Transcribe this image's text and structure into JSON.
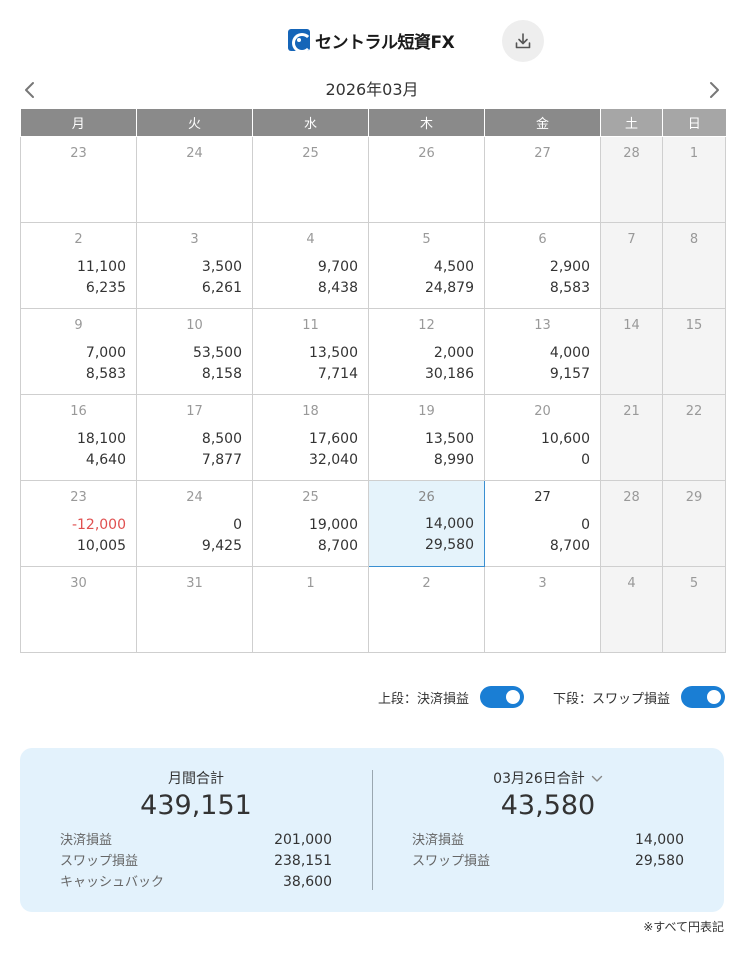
{
  "header": {
    "logo_text": "セントラル短資FX",
    "download_icon": "download-icon"
  },
  "calendar": {
    "month_title": "2026年03月",
    "weekdays": [
      "月",
      "火",
      "水",
      "木",
      "金",
      "土",
      "日"
    ],
    "weeks": [
      [
        {
          "day": "23",
          "pl": "",
          "swap": ""
        },
        {
          "day": "24",
          "pl": "",
          "swap": ""
        },
        {
          "day": "25",
          "pl": "",
          "swap": ""
        },
        {
          "day": "26",
          "pl": "",
          "swap": ""
        },
        {
          "day": "27",
          "pl": "",
          "swap": ""
        },
        {
          "day": "28",
          "pl": "",
          "swap": ""
        },
        {
          "day": "1",
          "pl": "",
          "swap": ""
        }
      ],
      [
        {
          "day": "2",
          "pl": "11,100",
          "swap": "6,235"
        },
        {
          "day": "3",
          "pl": "3,500",
          "swap": "6,261"
        },
        {
          "day": "4",
          "pl": "9,700",
          "swap": "8,438"
        },
        {
          "day": "5",
          "pl": "4,500",
          "swap": "24,879"
        },
        {
          "day": "6",
          "pl": "2,900",
          "swap": "8,583"
        },
        {
          "day": "7",
          "pl": "",
          "swap": ""
        },
        {
          "day": "8",
          "pl": "",
          "swap": ""
        }
      ],
      [
        {
          "day": "9",
          "pl": "7,000",
          "swap": "8,583"
        },
        {
          "day": "10",
          "pl": "53,500",
          "swap": "8,158"
        },
        {
          "day": "11",
          "pl": "13,500",
          "swap": "7,714"
        },
        {
          "day": "12",
          "pl": "2,000",
          "swap": "30,186"
        },
        {
          "day": "13",
          "pl": "4,000",
          "swap": "9,157"
        },
        {
          "day": "14",
          "pl": "",
          "swap": ""
        },
        {
          "day": "15",
          "pl": "",
          "swap": ""
        }
      ],
      [
        {
          "day": "16",
          "pl": "18,100",
          "swap": "4,640"
        },
        {
          "day": "17",
          "pl": "8,500",
          "swap": "7,877"
        },
        {
          "day": "18",
          "pl": "17,600",
          "swap": "32,040"
        },
        {
          "day": "19",
          "pl": "13,500",
          "swap": "8,990"
        },
        {
          "day": "20",
          "pl": "10,600",
          "swap": "0"
        },
        {
          "day": "21",
          "pl": "",
          "swap": ""
        },
        {
          "day": "22",
          "pl": "",
          "swap": ""
        }
      ],
      [
        {
          "day": "23",
          "pl": "-12,000",
          "swap": "10,005",
          "negative": true
        },
        {
          "day": "24",
          "pl": "0",
          "swap": "9,425"
        },
        {
          "day": "25",
          "pl": "19,000",
          "swap": "8,700"
        },
        {
          "day": "26",
          "pl": "14,000",
          "swap": "29,580",
          "today": true
        },
        {
          "day": "27",
          "pl": "0",
          "swap": "8,700",
          "current_month": true
        },
        {
          "day": "28",
          "pl": "",
          "swap": ""
        },
        {
          "day": "29",
          "pl": "",
          "swap": ""
        }
      ],
      [
        {
          "day": "30",
          "pl": "",
          "swap": ""
        },
        {
          "day": "31",
          "pl": "",
          "swap": ""
        },
        {
          "day": "1",
          "pl": "",
          "swap": ""
        },
        {
          "day": "2",
          "pl": "",
          "swap": ""
        },
        {
          "day": "3",
          "pl": "",
          "swap": ""
        },
        {
          "day": "4",
          "pl": "",
          "swap": ""
        },
        {
          "day": "5",
          "pl": "",
          "swap": ""
        }
      ]
    ]
  },
  "toggles": {
    "upper_label": "上段：決済損益",
    "lower_label": "下段：スワップ損益"
  },
  "summary": {
    "monthly": {
      "title": "月間合計",
      "total": "439,151",
      "rows": [
        {
          "label": "決済損益",
          "value": "201,000"
        },
        {
          "label": "スワップ損益",
          "value": "238,151"
        },
        {
          "label": "キャッシュバック",
          "value": "38,600"
        }
      ]
    },
    "daily": {
      "title": "03月26日合計",
      "total": "43,580",
      "rows": [
        {
          "label": "決済損益",
          "value": "14,000"
        },
        {
          "label": "スワップ損益",
          "value": "29,580"
        }
      ]
    }
  },
  "footnote": "※すべて円表記",
  "colors": {
    "accent": "#1a7ed4",
    "negative": "#e05050",
    "today_bg": "#e5f3fb",
    "summary_bg": "#e3f2fc"
  }
}
